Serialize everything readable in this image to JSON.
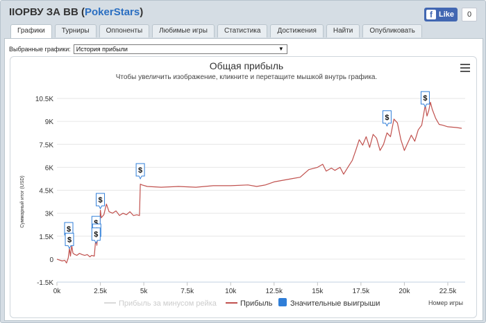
{
  "header": {
    "title": "IIОРВУ ЗА ВВ",
    "site": "PokerStars",
    "fb_like_label": "Like",
    "fb_count": "0"
  },
  "tabs": [
    {
      "label": "Графики",
      "active": true
    },
    {
      "label": "Турниры"
    },
    {
      "label": "Оппоненты"
    },
    {
      "label": "Любимые игры"
    },
    {
      "label": "Статистика"
    },
    {
      "label": "Достижения"
    },
    {
      "label": "Найти"
    },
    {
      "label": "Опубликовать"
    }
  ],
  "chart_selector": {
    "label": "Выбранные графики:",
    "value": "История прибыли"
  },
  "chart_data": {
    "type": "line",
    "title": "Общая прибыль",
    "subtitle": "Чтобы увеличить изображение, кликните и перетащите мышкой внутрь графика.",
    "ylabel": "Суммарный итог (USD)",
    "xlabel": "Номер игры",
    "xlim": [
      0,
      23500
    ],
    "ylim": [
      -1500,
      10500
    ],
    "x_ticks": [
      "0k",
      "2.5k",
      "5k",
      "7.5k",
      "10k",
      "12.5k",
      "15k",
      "17.5k",
      "20k",
      "22.5k"
    ],
    "y_ticks": [
      "-1.5K",
      "0",
      "1.5K",
      "3K",
      "4.5K",
      "6K",
      "7.5K",
      "9K",
      "10.5K"
    ],
    "grid": "horizontal",
    "legend": [
      "Прибыль за минусом рейка",
      "Прибыль",
      "Значительные выигрыши"
    ],
    "legend_position": "bottom",
    "series": [
      {
        "name": "Прибыль",
        "color": "#c0504d",
        "points": [
          [
            0,
            0
          ],
          [
            150,
            -60
          ],
          [
            300,
            -120
          ],
          [
            450,
            -80
          ],
          [
            550,
            -250
          ],
          [
            650,
            80
          ],
          [
            720,
            700
          ],
          [
            780,
            200
          ],
          [
            850,
            900
          ],
          [
            920,
            400
          ],
          [
            1000,
            320
          ],
          [
            1150,
            250
          ],
          [
            1300,
            380
          ],
          [
            1450,
            300
          ],
          [
            1600,
            250
          ],
          [
            1750,
            300
          ],
          [
            1900,
            150
          ],
          [
            2000,
            250
          ],
          [
            2150,
            200
          ],
          [
            2220,
            1100
          ],
          [
            2260,
            1500
          ],
          [
            2300,
            900
          ],
          [
            2350,
            1700
          ],
          [
            2400,
            1400
          ],
          [
            2450,
            1600
          ],
          [
            2500,
            3200
          ],
          [
            2550,
            2700
          ],
          [
            2700,
            2900
          ],
          [
            2850,
            3600
          ],
          [
            3000,
            3100
          ],
          [
            3200,
            3000
          ],
          [
            3400,
            3150
          ],
          [
            3600,
            2850
          ],
          [
            3800,
            3000
          ],
          [
            4000,
            2900
          ],
          [
            4200,
            3100
          ],
          [
            4400,
            2850
          ],
          [
            4600,
            2900
          ],
          [
            4750,
            2850
          ],
          [
            4800,
            4900
          ],
          [
            4900,
            4850
          ],
          [
            5200,
            4750
          ],
          [
            6000,
            4700
          ],
          [
            7000,
            4750
          ],
          [
            8000,
            4700
          ],
          [
            9000,
            4800
          ],
          [
            10000,
            4800
          ],
          [
            11000,
            4850
          ],
          [
            11500,
            4750
          ],
          [
            12000,
            4850
          ],
          [
            12500,
            5050
          ],
          [
            13000,
            5150
          ],
          [
            13500,
            5250
          ],
          [
            14000,
            5350
          ],
          [
            14500,
            5850
          ],
          [
            15000,
            6000
          ],
          [
            15300,
            6200
          ],
          [
            15500,
            5750
          ],
          [
            15800,
            5950
          ],
          [
            16000,
            5800
          ],
          [
            16300,
            6000
          ],
          [
            16500,
            5550
          ],
          [
            16800,
            6100
          ],
          [
            17000,
            6450
          ],
          [
            17200,
            7100
          ],
          [
            17400,
            7800
          ],
          [
            17600,
            7450
          ],
          [
            17800,
            8000
          ],
          [
            18000,
            7300
          ],
          [
            18200,
            8150
          ],
          [
            18400,
            7900
          ],
          [
            18600,
            7100
          ],
          [
            18800,
            7500
          ],
          [
            19000,
            8250
          ],
          [
            19200,
            8000
          ],
          [
            19400,
            9150
          ],
          [
            19600,
            8900
          ],
          [
            19800,
            7800
          ],
          [
            20000,
            7100
          ],
          [
            20200,
            7600
          ],
          [
            20400,
            8100
          ],
          [
            20600,
            7700
          ],
          [
            20800,
            8450
          ],
          [
            21000,
            8750
          ],
          [
            21200,
            10050
          ],
          [
            21300,
            9350
          ],
          [
            21400,
            9700
          ],
          [
            21500,
            10250
          ],
          [
            21600,
            9800
          ],
          [
            21800,
            9200
          ],
          [
            22000,
            8800
          ],
          [
            22200,
            8750
          ],
          [
            22500,
            8650
          ],
          [
            23000,
            8600
          ],
          [
            23300,
            8550
          ]
        ]
      }
    ],
    "markers": [
      {
        "x": 680,
        "y": 1400
      },
      {
        "x": 720,
        "y": 700
      },
      {
        "x": 2250,
        "y": 1800
      },
      {
        "x": 2290,
        "y": 1300
      },
      {
        "x": 2250,
        "y": 1050
      },
      {
        "x": 2500,
        "y": 3300
      },
      {
        "x": 4800,
        "y": 5250
      },
      {
        "x": 19000,
        "y": 8700
      },
      {
        "x": 21200,
        "y": 9950
      }
    ],
    "colors": {
      "line": "#c0504d",
      "net_line": "#d9d9d9",
      "marker": "#2f7ed8"
    }
  }
}
